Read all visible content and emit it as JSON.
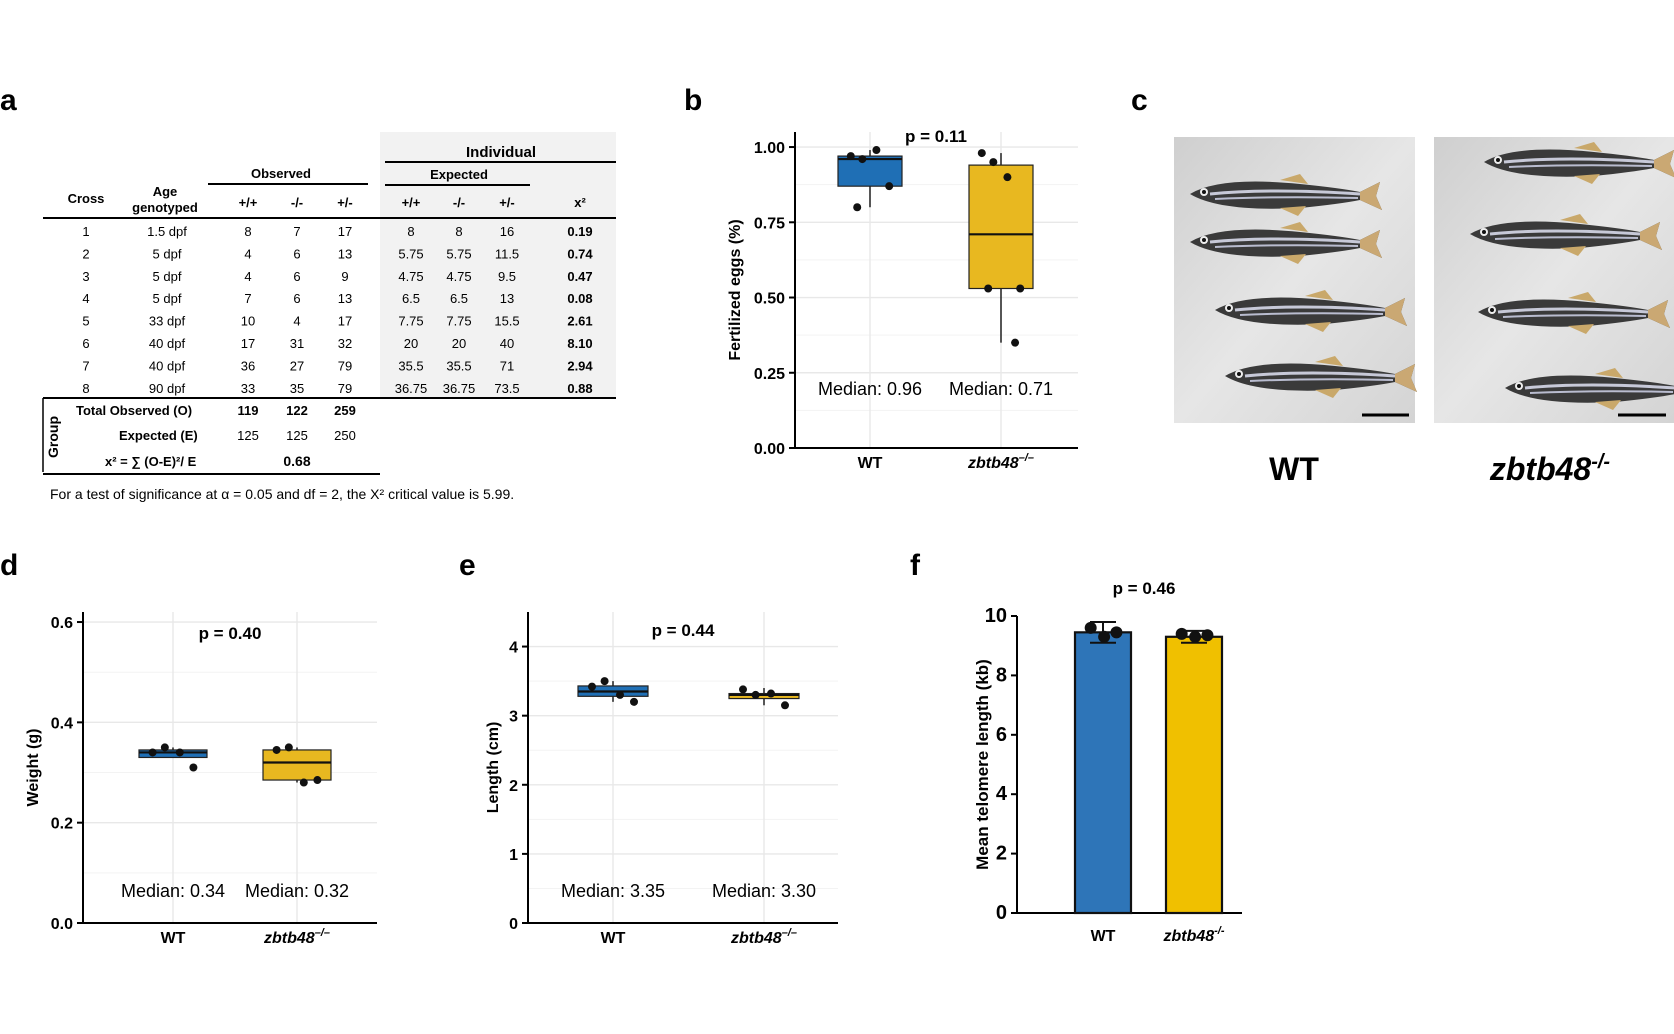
{
  "panel_labels": [
    "a",
    "b",
    "c",
    "d",
    "e",
    "f"
  ],
  "table": {
    "individual_header": "Individual",
    "observed_header": "Observed",
    "expected_header": "Expected",
    "col_cross": "Cross",
    "col_age_line1": "Age",
    "col_age_line2": "genotyped",
    "genotype_cols": [
      "+/+",
      "-/-",
      "+/-"
    ],
    "col_chi": "x²",
    "rows": [
      {
        "cross": "1",
        "age": "1.5 dpf",
        "obs": [
          "8",
          "7",
          "17"
        ],
        "exp": [
          "8",
          "8",
          "16"
        ],
        "chi": "0.19"
      },
      {
        "cross": "2",
        "age": "5 dpf",
        "obs": [
          "4",
          "6",
          "13"
        ],
        "exp": [
          "5.75",
          "5.75",
          "11.5"
        ],
        "chi": "0.74"
      },
      {
        "cross": "3",
        "age": "5 dpf",
        "obs": [
          "4",
          "6",
          "9"
        ],
        "exp": [
          "4.75",
          "4.75",
          "9.5"
        ],
        "chi": "0.47"
      },
      {
        "cross": "4",
        "age": "5 dpf",
        "obs": [
          "7",
          "6",
          "13"
        ],
        "exp": [
          "6.5",
          "6.5",
          "13"
        ],
        "chi": "0.08"
      },
      {
        "cross": "5",
        "age": "33 dpf",
        "obs": [
          "10",
          "4",
          "17"
        ],
        "exp": [
          "7.75",
          "7.75",
          "15.5"
        ],
        "chi": "2.61"
      },
      {
        "cross": "6",
        "age": "40 dpf",
        "obs": [
          "17",
          "31",
          "32"
        ],
        "exp": [
          "20",
          "20",
          "40"
        ],
        "chi": "8.10"
      },
      {
        "cross": "7",
        "age": "40 dpf",
        "obs": [
          "36",
          "27",
          "79"
        ],
        "exp": [
          "35.5",
          "35.5",
          "71"
        ],
        "chi": "2.94"
      },
      {
        "cross": "8",
        "age": "90 dpf",
        "obs": [
          "33",
          "35",
          "79"
        ],
        "exp": [
          "36.75",
          "36.75",
          "73.5"
        ],
        "chi": "0.88"
      }
    ],
    "group_label": "Group",
    "total_observed_label": "Total Observed (O)",
    "total_observed": [
      "119",
      "122",
      "259"
    ],
    "expected_label": "Expected (E)",
    "expected_totals": [
      "125",
      "125",
      "250"
    ],
    "chi_formula_label": "x² = ∑ (O-E)²/ E",
    "chi_total": "0.68",
    "footnote": "For a test of significance at α = 0.05 and df = 2, the X² critical value is 5.99."
  },
  "photo_labels": {
    "left": "WT",
    "right_base": "zbtb48",
    "right_sup": "-/-"
  },
  "colors": {
    "wt": "#1f6fb5",
    "mutant": "#e8b820",
    "bar_wt": "#2e75b8",
    "bar_mutant": "#f0c000",
    "grid": "#e8e8e8",
    "shade": "#f2f2f2"
  },
  "chart_data": [
    {
      "panel": "b",
      "type": "box",
      "categories": [
        "WT",
        "zbtb48"
      ],
      "category_superscript": [
        "",
        "–/–"
      ],
      "ylabel": "Fertilized eggs (%)",
      "ylim": [
        0,
        1.05
      ],
      "yticks": [
        "0.00",
        "0.25",
        "0.50",
        "0.75",
        "1.00"
      ],
      "pvalue": "p = 0.11",
      "medians_text": [
        "Median: 0.96",
        "Median: 0.71"
      ],
      "boxes": [
        {
          "min": 0.8,
          "q1": 0.87,
          "median": 0.96,
          "q3": 0.97,
          "max": 0.99
        },
        {
          "min": 0.35,
          "q1": 0.53,
          "median": 0.71,
          "q3": 0.94,
          "max": 0.98
        }
      ],
      "points": [
        [
          0.97,
          0.96,
          0.99,
          0.87,
          0.8
        ],
        [
          0.98,
          0.95,
          0.9,
          0.53,
          0.53,
          0.35
        ]
      ]
    },
    {
      "panel": "d",
      "type": "box",
      "categories": [
        "WT",
        "zbtb48"
      ],
      "category_superscript": [
        "",
        "–/–"
      ],
      "ylabel": "Weight (g)",
      "ylim": [
        0,
        0.62
      ],
      "yticks": [
        "0.0",
        "0.2",
        "0.4",
        "0.6"
      ],
      "pvalue": "p = 0.40",
      "medians_text": [
        "Median: 0.34",
        "Median: 0.32"
      ],
      "boxes": [
        {
          "min": 0.33,
          "q1": 0.33,
          "median": 0.34,
          "q3": 0.345,
          "max": 0.35
        },
        {
          "min": 0.28,
          "q1": 0.285,
          "median": 0.32,
          "q3": 0.345,
          "max": 0.35
        }
      ],
      "points": [
        [
          0.34,
          0.35,
          0.34,
          0.31
        ],
        [
          0.345,
          0.35,
          0.28,
          0.285
        ]
      ]
    },
    {
      "panel": "e",
      "type": "box",
      "categories": [
        "WT",
        "zbtb48"
      ],
      "category_superscript": [
        "",
        "–/–"
      ],
      "ylabel": "Length (cm)",
      "ylim": [
        0,
        4.5
      ],
      "yticks": [
        "0",
        "1",
        "2",
        "3",
        "4"
      ],
      "pvalue": "p = 0.44",
      "medians_text": [
        "Median: 3.35",
        "Median: 3.30"
      ],
      "boxes": [
        {
          "min": 3.2,
          "q1": 3.28,
          "median": 3.35,
          "q3": 3.43,
          "max": 3.5
        },
        {
          "min": 3.15,
          "q1": 3.25,
          "median": 3.3,
          "q3": 3.32,
          "max": 3.4
        }
      ],
      "points": [
        [
          3.42,
          3.5,
          3.3,
          3.2
        ],
        [
          3.38,
          3.3,
          3.32,
          3.15
        ]
      ]
    },
    {
      "panel": "f",
      "type": "bar",
      "categories": [
        "WT",
        "zbtb48"
      ],
      "category_superscript": [
        "",
        "-/-"
      ],
      "ylabel": "Mean telomere length (kb)",
      "ylim": [
        0,
        10
      ],
      "yticks": [
        "0",
        "2",
        "4",
        "6",
        "8",
        "10"
      ],
      "pvalue": "p = 0.46",
      "values": [
        9.45,
        9.3
      ],
      "errors": [
        0.35,
        0.2
      ],
      "points": [
        [
          9.6,
          9.3,
          9.45
        ],
        [
          9.4,
          9.3,
          9.35
        ]
      ]
    }
  ]
}
